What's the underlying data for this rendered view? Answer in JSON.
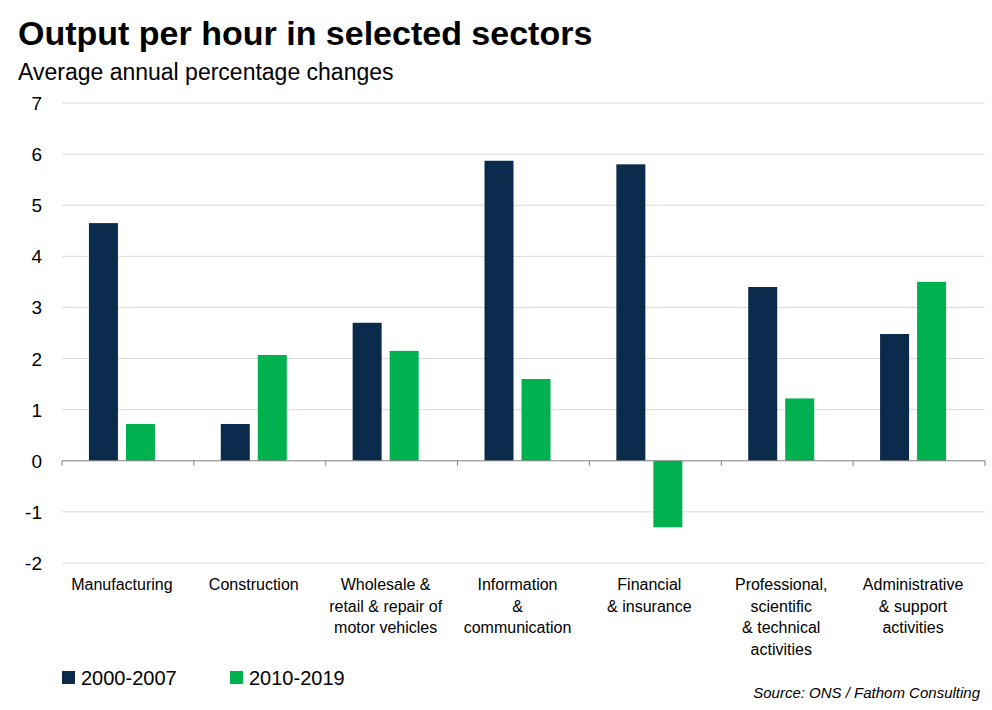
{
  "chart_data": {
    "type": "bar",
    "title": "Output per hour in selected sectors",
    "subtitle": "Average annual percentage changes",
    "source": "Source: ONS / Fathom Consulting",
    "categories": [
      "Manufacturing",
      "Construction",
      "Wholesale &\nretail & repair of\nmotor vehicles",
      "Information\n&\ncommunication",
      "Financial\n& insurance",
      "Professional,\nscientific\n& technical\nactivities",
      "Administrative\n& support\nactivities"
    ],
    "series": [
      {
        "name": "2000-2007",
        "color": "#0b2b4c",
        "values": [
          4.65,
          0.72,
          2.7,
          5.87,
          5.8,
          3.4,
          2.48
        ]
      },
      {
        "name": "2010-2019",
        "color": "#00b14f",
        "values": [
          0.72,
          2.07,
          2.15,
          1.6,
          -1.3,
          1.22,
          3.5
        ]
      }
    ],
    "ylim": [
      -2,
      7
    ],
    "yticks": [
      -2,
      -1,
      0,
      1,
      2,
      3,
      4,
      5,
      6,
      7
    ],
    "grid": true,
    "legend": "bottom-left"
  }
}
